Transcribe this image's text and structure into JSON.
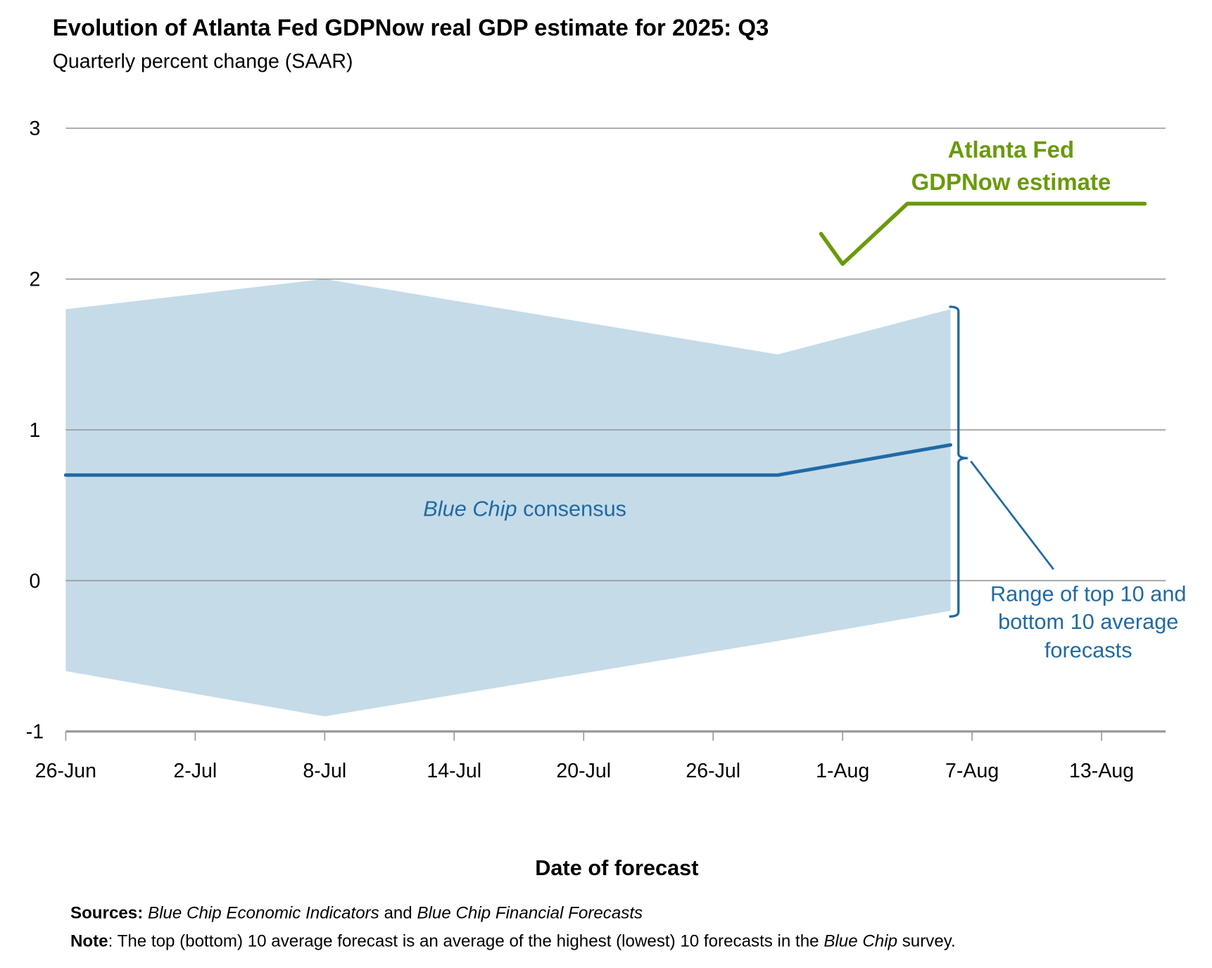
{
  "chart_data": {
    "type": "area",
    "title": "Evolution of Atlanta Fed GDPNow real GDP estimate for 2025: Q3",
    "subtitle": "Quarterly percent change (SAAR)",
    "xlabel": "Date of forecast",
    "ylabel": "",
    "ylim": [
      -1,
      3
    ],
    "yticks": [
      "-1",
      "0",
      "1",
      "2",
      "3"
    ],
    "xtick_labels": [
      "26-Jun",
      "2-Jul",
      "8-Jul",
      "14-Jul",
      "20-Jul",
      "26-Jul",
      "1-Aug",
      "7-Aug",
      "13-Aug"
    ],
    "x_day_range": [
      0,
      51
    ],
    "grid": true,
    "range_band": {
      "name": "Range of top 10 and bottom 10 average forecasts",
      "dates": [
        "26-Jun",
        "8-Jul",
        "29-Jul",
        "6-Aug"
      ],
      "day": [
        0,
        12,
        33,
        41
      ],
      "top": [
        1.8,
        2.0,
        1.5,
        1.8
      ],
      "bottom": [
        -0.6,
        -0.9,
        -0.4,
        -0.2
      ]
    },
    "series": [
      {
        "name": "Blue Chip consensus",
        "dates": [
          "26-Jun",
          "29-Jul",
          "6-Aug"
        ],
        "day": [
          0,
          33,
          41
        ],
        "values": [
          0.7,
          0.7,
          0.9
        ],
        "color": "#1f6aa5"
      },
      {
        "name": "Atlanta Fed GDPNow estimate",
        "dates": [
          "31-Jul",
          "1-Aug",
          "4-Aug",
          "15-Aug"
        ],
        "day": [
          35,
          36,
          39,
          50
        ],
        "values": [
          2.3,
          2.1,
          2.5,
          2.5
        ],
        "color": "#6a9a0a"
      }
    ],
    "annotations": {
      "gdpnow_line1": "Atlanta Fed",
      "gdpnow_line2": "GDPNow estimate",
      "consensus_italic": "Blue Chip",
      "consensus_rest": " consensus",
      "range_line1": "Range of top 10 and",
      "range_line2": "bottom 10 average",
      "range_line3": "forecasts"
    },
    "colors": {
      "band": "#c5dbe8",
      "grid": "#999999"
    }
  },
  "footer": {
    "sources_label": "Sources:",
    "sources_italic1": "Blue Chip Economic Indicators",
    "sources_and": " and ",
    "sources_italic2": "Blue Chip Financial Forecasts",
    "note_label": "Note",
    "note_text": ": The top (bottom) 10 average forecast is an average of the highest (lowest) 10 forecasts in the ",
    "note_italic": "Blue Chip",
    "note_end": " survey."
  }
}
